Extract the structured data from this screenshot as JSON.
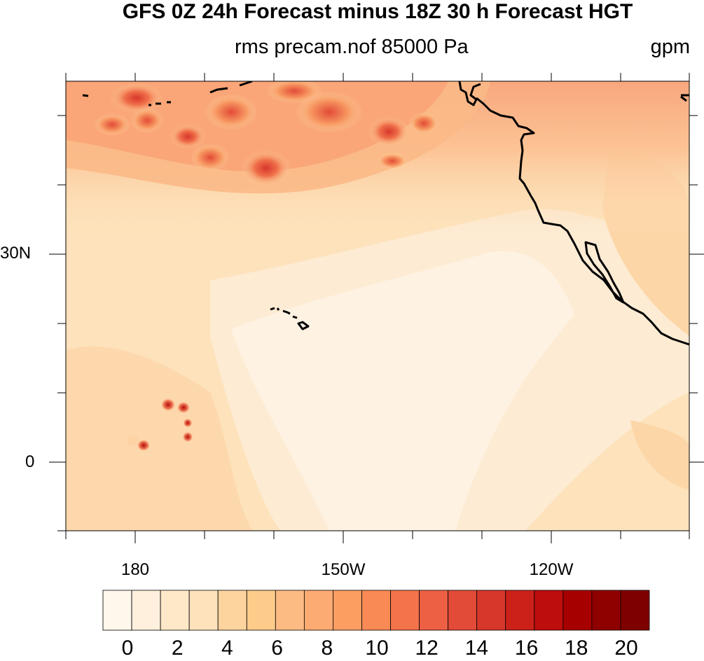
{
  "title": "GFS 0Z 24h Forecast minus 18Z 30 h Forecast HGT",
  "subtitle": "rms precam.nof 85000 Pa",
  "units": "gpm",
  "map": {
    "lat_labels": [
      "30N",
      "0"
    ],
    "lon_labels": [
      "180",
      "150W",
      "120W"
    ],
    "colors": {
      "background_low": "#fdebd3",
      "background_mid": "#fde0bd",
      "high_band": "#f4a07a",
      "peak": "#cf3a2b",
      "coastline": "#000000"
    }
  },
  "colorbar": {
    "labels": [
      "0",
      "2",
      "4",
      "6",
      "8",
      "10",
      "12",
      "14",
      "16",
      "18",
      "20"
    ],
    "colors": [
      "#fff7ec",
      "#fef0dd",
      "#fee8c8",
      "#fde2bb",
      "#fdd49e",
      "#fdcc8a",
      "#fdbb84",
      "#fcab73",
      "#fc9d62",
      "#f98a55",
      "#f3734a",
      "#ed6044",
      "#e24b37",
      "#d7372b",
      "#cb2119",
      "#bd0d0d",
      "#a70000",
      "#8f0000",
      "#7f0000"
    ]
  }
}
